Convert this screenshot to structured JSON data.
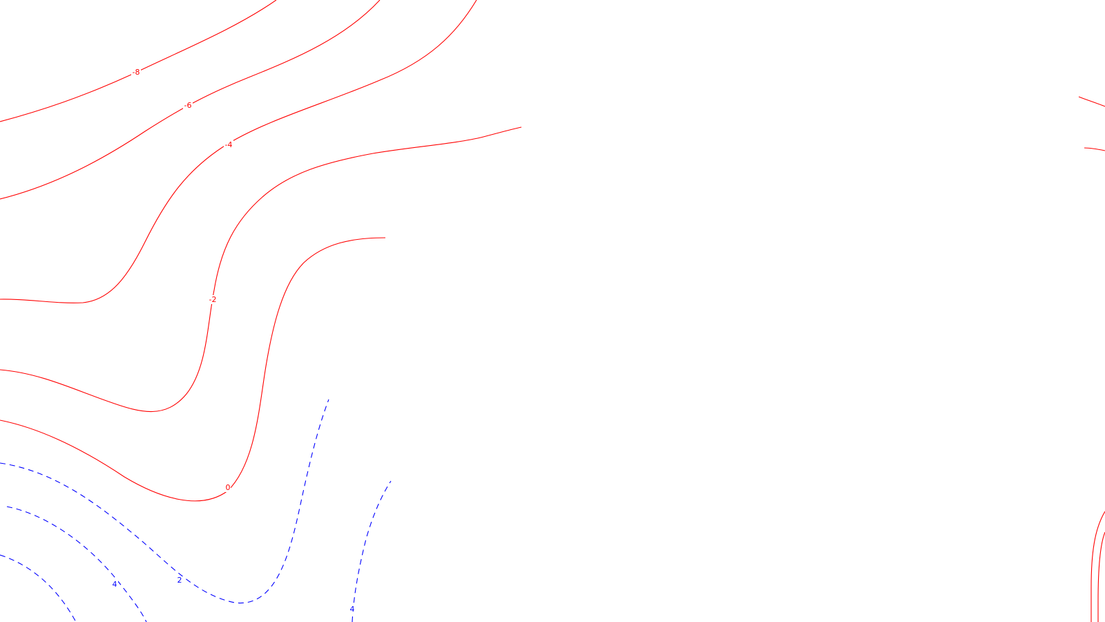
{
  "colors": {
    "negative_contour": "#ff0000",
    "positive_contour": "#0000ff",
    "background": "#ffffff"
  },
  "contour_labels": {
    "minus8": "-8",
    "minus6": "-6",
    "minus4": "-4",
    "minus2": "-2",
    "zero": "0",
    "plus2": "2",
    "plus4_left": "4",
    "plus4_right": "4"
  }
}
